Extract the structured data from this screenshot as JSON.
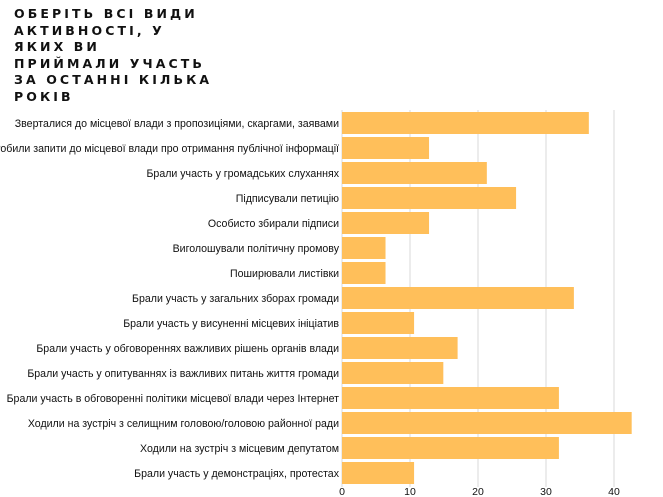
{
  "chart_data": {
    "type": "bar",
    "orientation": "horizontal",
    "title_lines": [
      "ОБЕРІТЬ ВСІ ВИДИ",
      "АКТИВНОСТІ, У",
      "ЯКИХ ВИ",
      "ПРИЙМАЛИ УЧАСТЬ",
      "ЗА ОСТАННІ КІЛЬКА",
      "РОКІВ"
    ],
    "categories": [
      "Зверталися до місцевої влади з пропозиціями, скаргами, заявами",
      "Робили запити до місцевої влади про отримання публічної інформації",
      "Брали участь у громадських слуханнях",
      "Підписували петицію",
      "Особисто збирали підписи",
      "Виголошували політичну промову",
      "Поширювали листівки",
      "Брали участь у загальних зборах громади",
      "Брали участь у висуненні місцевих ініціатив",
      "Брали участь у обговореннях важливих рішень органів влади",
      "Брали участь у опитуваннях із важливих питань життя громади",
      "Брали участь в обговоренні політики місцевої влади через Інтернет",
      "Ходили на зустріч з селищним головою/головою районної ради",
      "Ходили на зустріч з місцевим депутатом",
      "Брали участь у демонстраціях, протестах"
    ],
    "values": [
      36.3,
      12.8,
      21.3,
      25.6,
      12.8,
      6.4,
      6.4,
      34.1,
      10.6,
      17.0,
      14.9,
      31.9,
      42.6,
      31.9,
      10.6
    ],
    "xticks": [
      0,
      10,
      20,
      30,
      40
    ],
    "xlim": [
      0,
      43
    ],
    "grid": true,
    "bar_color": "#ffbf5a"
  }
}
